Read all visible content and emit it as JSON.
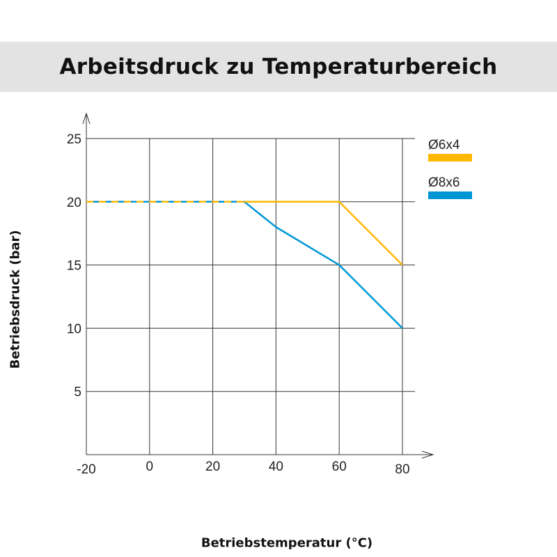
{
  "chart_data": {
    "type": "line",
    "title": "Arbeitsdruck zu Temperaturbereich",
    "xlabel": "Betriebstemperatur (°C)",
    "ylabel": "Betriebsdruck (bar)",
    "xlim": [
      -20,
      80
    ],
    "ylim": [
      0,
      25
    ],
    "x_ticks": [
      "-20",
      "0",
      "20",
      "40",
      "60",
      "80"
    ],
    "y_ticks": [
      "5",
      "10",
      "15",
      "20",
      "25"
    ],
    "grid": true,
    "legend_position": "right",
    "series": [
      {
        "name": "Ø6x4",
        "color": "#ffb800",
        "x": [
          -20,
          30,
          60,
          80
        ],
        "y": [
          20,
          20,
          20,
          15
        ],
        "dashed_until_x": 30
      },
      {
        "name": "Ø8x6",
        "color": "#0096d6",
        "x": [
          -20,
          30,
          40,
          60,
          80
        ],
        "y": [
          20,
          20,
          18,
          15,
          10
        ],
        "dashed_until_x": 30
      }
    ]
  }
}
